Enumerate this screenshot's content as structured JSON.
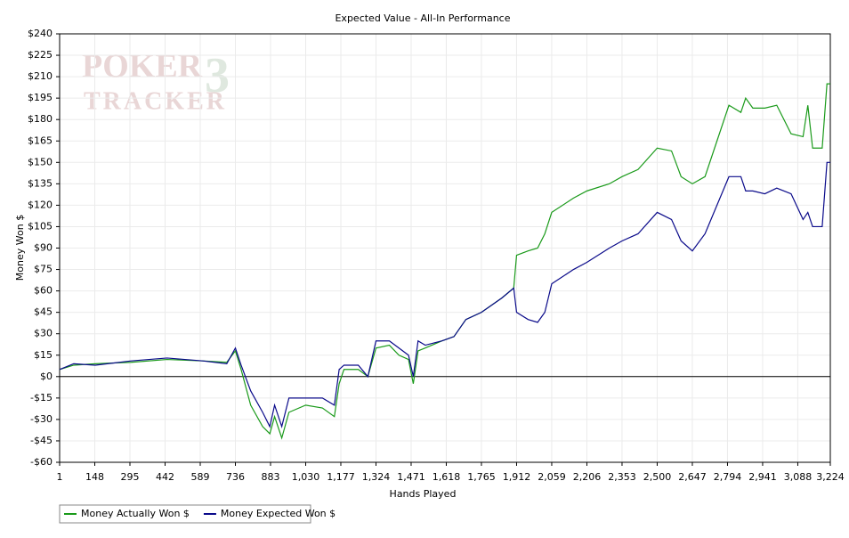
{
  "chart_data": {
    "type": "line",
    "title": "Expected Value - All-In Performance",
    "xlabel": "Hands Played",
    "ylabel": "Money Won $",
    "logo": {
      "line1": "POKER",
      "line2": "TRACKER",
      "mark": "3"
    },
    "x": [
      1,
      60,
      150,
      300,
      450,
      600,
      700,
      736,
      760,
      800,
      850,
      880,
      900,
      930,
      960,
      1030,
      1100,
      1150,
      1170,
      1190,
      1250,
      1290,
      1324,
      1380,
      1420,
      1460,
      1480,
      1500,
      1530,
      1600,
      1650,
      1700,
      1765,
      1850,
      1900,
      1912,
      1960,
      2000,
      2030,
      2059,
      2150,
      2206,
      2300,
      2353,
      2420,
      2500,
      2560,
      2600,
      2647,
      2700,
      2750,
      2800,
      2850,
      2870,
      2900,
      2950,
      3000,
      3060,
      3110,
      3130,
      3150,
      3190,
      3210,
      3224
    ],
    "series": [
      {
        "name": "Money Actually Won $",
        "color": "#1a9a1a",
        "values": [
          5,
          8,
          9,
          10,
          12,
          11,
          10,
          18,
          5,
          -20,
          -35,
          -40,
          -28,
          -43,
          -25,
          -20,
          -22,
          -28,
          -5,
          5,
          5,
          0,
          20,
          22,
          15,
          12,
          -5,
          18,
          20,
          25,
          28,
          40,
          45,
          55,
          62,
          85,
          88,
          90,
          100,
          115,
          125,
          130,
          135,
          140,
          145,
          160,
          158,
          140,
          135,
          140,
          165,
          190,
          185,
          195,
          188,
          188,
          190,
          170,
          168,
          190,
          160,
          160,
          205,
          205
        ]
      },
      {
        "name": "Money Expected Won $",
        "color": "#0a0a8a",
        "values": [
          5,
          9,
          8,
          11,
          13,
          11,
          9,
          20,
          8,
          -10,
          -25,
          -35,
          -20,
          -35,
          -15,
          -15,
          -15,
          -20,
          5,
          8,
          8,
          0,
          25,
          25,
          20,
          15,
          0,
          25,
          22,
          25,
          28,
          40,
          45,
          55,
          62,
          45,
          40,
          38,
          45,
          65,
          75,
          80,
          90,
          95,
          100,
          115,
          110,
          95,
          88,
          100,
          120,
          140,
          140,
          130,
          130,
          128,
          132,
          128,
          110,
          115,
          105,
          105,
          150,
          150
        ]
      }
    ],
    "xlim": [
      1,
      3224
    ],
    "xticks": [
      1,
      148,
      295,
      442,
      589,
      736,
      883,
      {
        "value": 1030,
        "label": "1,030"
      },
      {
        "value": 1177,
        "label": "1,177"
      },
      {
        "value": 1324,
        "label": "1,324"
      },
      {
        "value": 1471,
        "label": "1,471"
      },
      {
        "value": 1618,
        "label": "1,618"
      },
      {
        "value": 1765,
        "label": "1,765"
      },
      {
        "value": 1912,
        "label": "1,912"
      },
      {
        "value": 2059,
        "label": "2,059"
      },
      {
        "value": 2206,
        "label": "2,206"
      },
      {
        "value": 2353,
        "label": "2,353"
      },
      {
        "value": 2500,
        "label": "2,500"
      },
      {
        "value": 2647,
        "label": "2,647"
      },
      {
        "value": 2794,
        "label": "2,794"
      },
      {
        "value": 2941,
        "label": "2,941"
      },
      {
        "value": 3088,
        "label": "3,088"
      },
      {
        "value": 3224,
        "label": "3,224"
      }
    ],
    "ylim": [
      -60,
      240
    ],
    "yticks": [
      {
        "value": -60,
        "label": "-$60"
      },
      {
        "value": -45,
        "label": "-$45"
      },
      {
        "value": -30,
        "label": "-$30"
      },
      {
        "value": -15,
        "label": "-$15"
      },
      {
        "value": 0,
        "label": "$0"
      },
      {
        "value": 15,
        "label": "$15"
      },
      {
        "value": 30,
        "label": "$30"
      },
      {
        "value": 45,
        "label": "$45"
      },
      {
        "value": 60,
        "label": "$60"
      },
      {
        "value": 75,
        "label": "$75"
      },
      {
        "value": 90,
        "label": "$90"
      },
      {
        "value": 105,
        "label": "$105"
      },
      {
        "value": 120,
        "label": "$120"
      },
      {
        "value": 135,
        "label": "$135"
      },
      {
        "value": 150,
        "label": "$150"
      },
      {
        "value": 165,
        "label": "$165"
      },
      {
        "value": 180,
        "label": "$180"
      },
      {
        "value": 195,
        "label": "$195"
      },
      {
        "value": 210,
        "label": "$210"
      },
      {
        "value": 225,
        "label": "$225"
      },
      {
        "value": 240,
        "label": "$240"
      }
    ],
    "grid": true,
    "legend": "bottom-left"
  }
}
